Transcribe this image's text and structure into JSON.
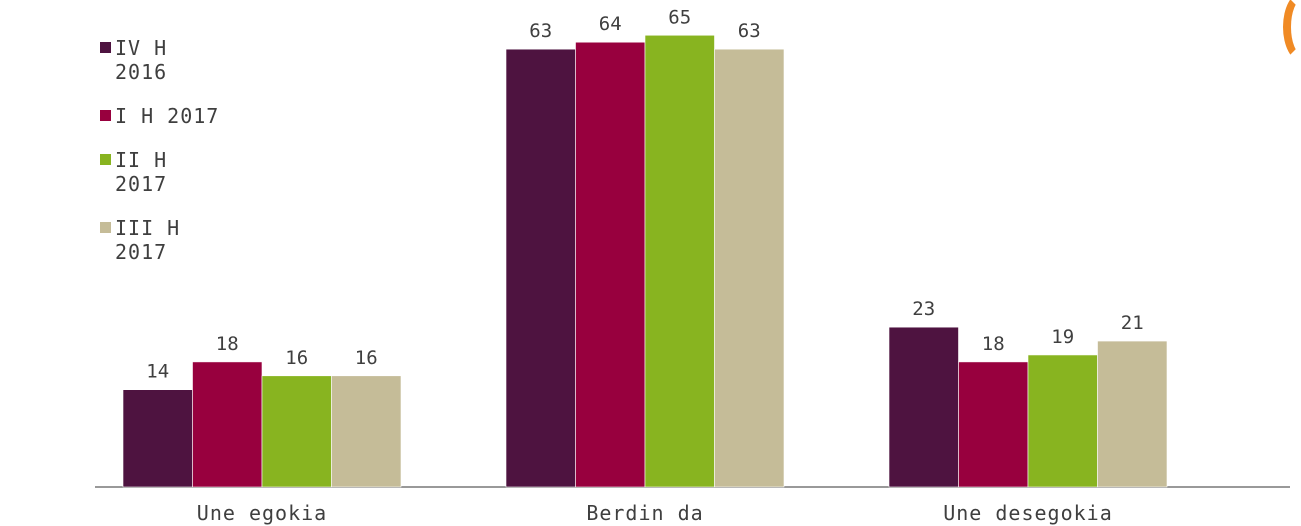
{
  "chart_data": {
    "type": "bar",
    "categories": [
      "Une egokia",
      "Berdin da",
      "Une desegokia"
    ],
    "series": [
      {
        "name": "IV H 2016",
        "color": "#4e1340",
        "values": [
          14,
          63,
          23
        ]
      },
      {
        "name": "I H 2017",
        "color": "#98003e",
        "values": [
          18,
          64,
          18
        ]
      },
      {
        "name": "II H 2017",
        "color": "#88b420",
        "values": [
          16,
          65,
          19
        ]
      },
      {
        "name": "III H 2017",
        "color": "#c5bc98",
        "values": [
          16,
          63,
          21
        ]
      }
    ],
    "title": "",
    "xlabel": "",
    "ylabel": "",
    "ylim": [
      0,
      70
    ],
    "grid": false,
    "legend_position": "top-left",
    "data_labels": true
  },
  "colors": {
    "axis": "#999999",
    "text": "#3f3f3f",
    "accent": "#f08a24"
  }
}
